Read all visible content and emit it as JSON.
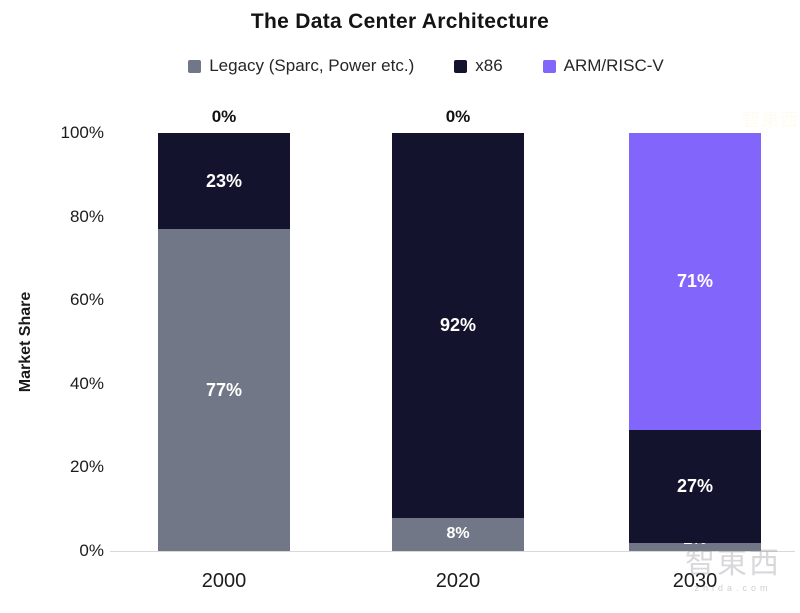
{
  "chart_data": {
    "type": "bar",
    "subtype": "stacked-vertical",
    "title": "The Data Center Architecture",
    "xlabel": "",
    "ylabel": "Market Share",
    "categories": [
      "2000",
      "2020",
      "2030"
    ],
    "series": [
      {
        "name": "Legacy (Sparc, Power etc.)",
        "color": "#717786",
        "values": [
          77,
          8,
          2
        ]
      },
      {
        "name": "x86",
        "color": "#13132e",
        "values": [
          23,
          92,
          27
        ]
      },
      {
        "name": "ARM/RISC-V",
        "color": "#8266fb",
        "values": [
          0,
          0,
          71
        ]
      }
    ],
    "top_labels": [
      "0%",
      "0%",
      null
    ],
    "y_ticks": [
      0,
      20,
      40,
      60,
      80,
      100
    ],
    "y_tick_suffix": "%",
    "ylim": [
      0,
      100
    ],
    "legend_position": "top",
    "grid": false,
    "bar_label_color": "#ffffff"
  },
  "watermark": {
    "cn": "智東西",
    "domain": "zhida.com"
  },
  "colors": {
    "background": "#ffffff",
    "axis_line": "#d8d8d8",
    "title_text": "#141414",
    "tick_text": "#1c1c1c"
  }
}
